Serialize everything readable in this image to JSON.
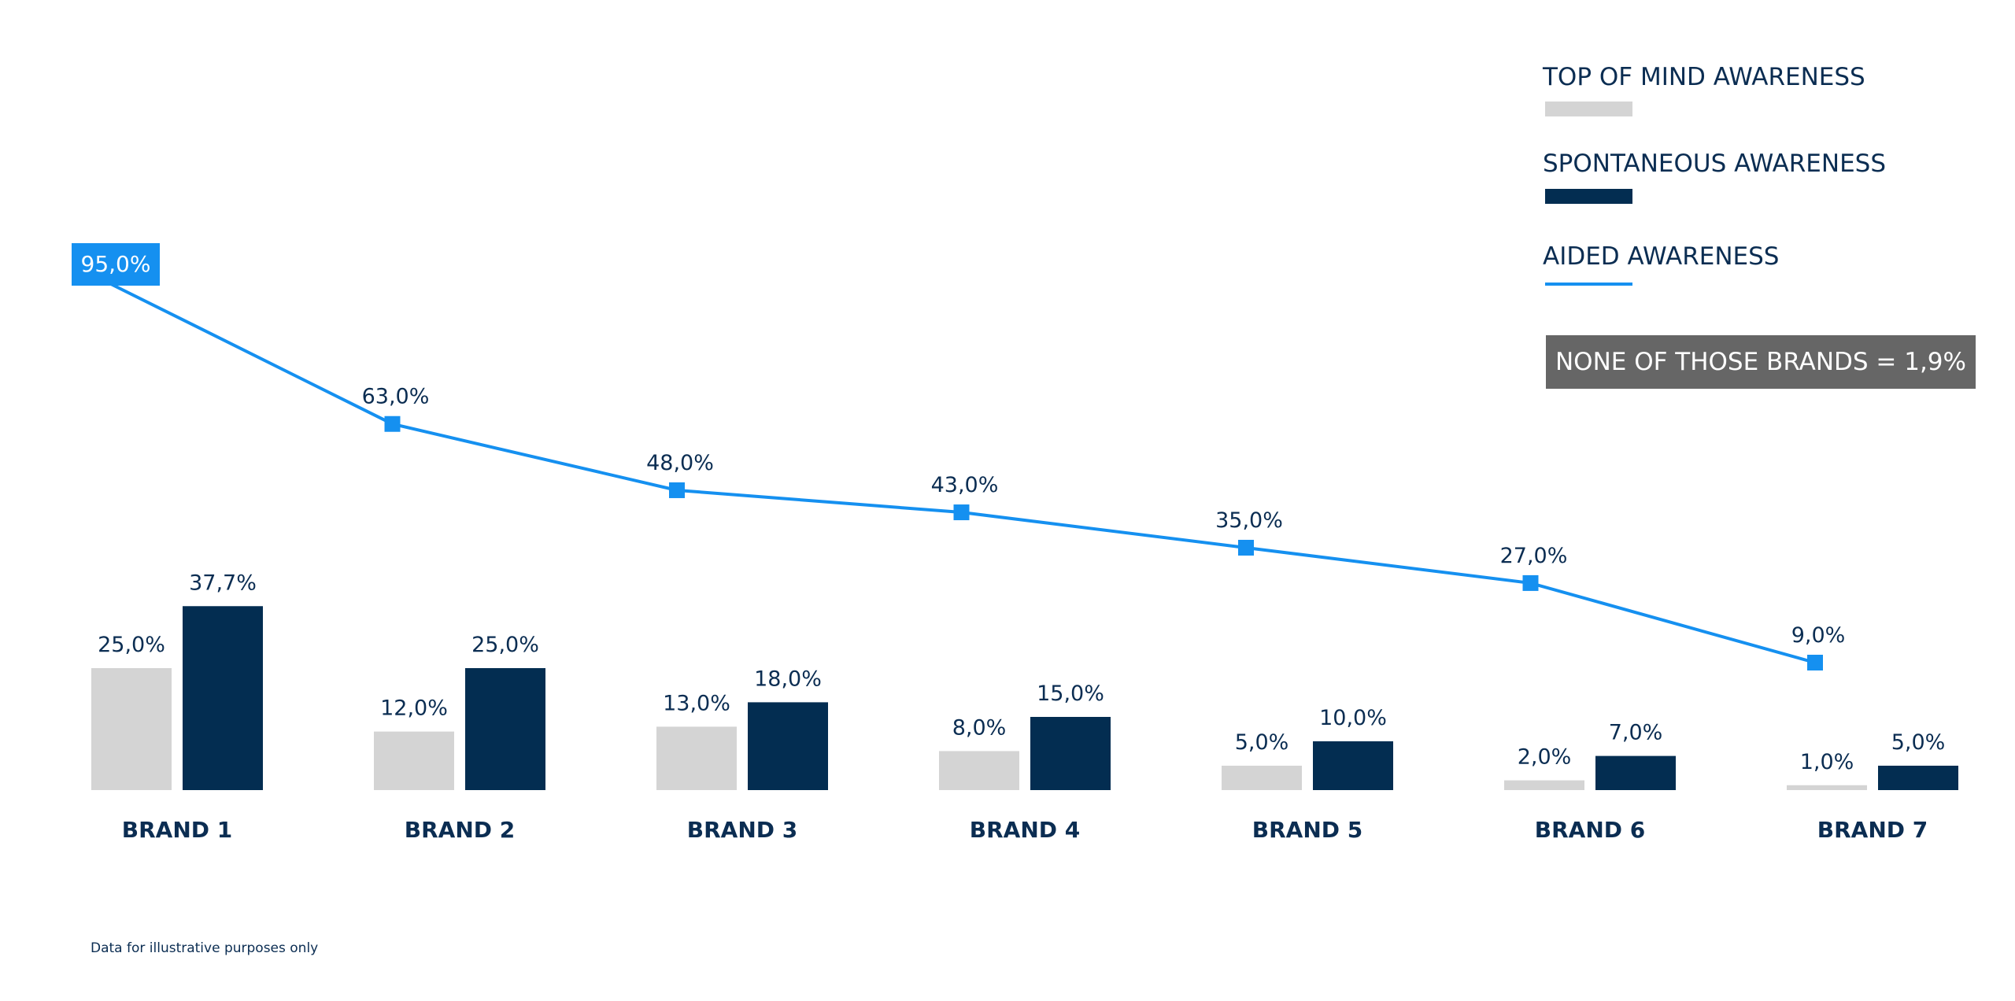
{
  "legend": {
    "top_of_mind": "TOP OF MIND AWARENESS",
    "spontaneous": "SPONTANEOUS AWARENESS",
    "aided": "AIDED AWARENESS"
  },
  "note": "NONE OF THOSE BRANDS = 1,9%",
  "footnote": "Data for illustrative purposes only",
  "colors": {
    "top_of_mind": "#d4d4d4",
    "spontaneous": "#032d51",
    "aided": "#1590f0",
    "note_bg": "#666666",
    "text": "#0b2d52"
  },
  "chart_data": {
    "type": "bar",
    "categories": [
      "BRAND 1",
      "BRAND 2",
      "BRAND 3",
      "BRAND 4",
      "BRAND 5",
      "BRAND 6",
      "BRAND 7"
    ],
    "series": [
      {
        "name": "TOP OF MIND AWARENESS",
        "type": "bar",
        "values": [
          25.0,
          12.0,
          13.0,
          8.0,
          5.0,
          2.0,
          1.0
        ],
        "labels": [
          "25,0%",
          "12,0%",
          "13,0%",
          "8,0%",
          "5,0%",
          "2,0%",
          "1,0%"
        ]
      },
      {
        "name": "SPONTANEOUS AWARENESS",
        "type": "bar",
        "values": [
          37.7,
          25.0,
          18.0,
          15.0,
          10.0,
          7.0,
          5.0
        ],
        "labels": [
          "37,7%",
          "25,0%",
          "18,0%",
          "15,0%",
          "10,0%",
          "7,0%",
          "5,0%"
        ]
      },
      {
        "name": "AIDED AWARENESS",
        "type": "line",
        "values": [
          95.0,
          63.0,
          48.0,
          43.0,
          35.0,
          27.0,
          9.0
        ],
        "labels": [
          "95,0%",
          "63,0%",
          "48,0%",
          "43,0%",
          "35,0%",
          "27,0%",
          "9,0%"
        ]
      }
    ],
    "legend_position": "top-right",
    "grid": false
  }
}
